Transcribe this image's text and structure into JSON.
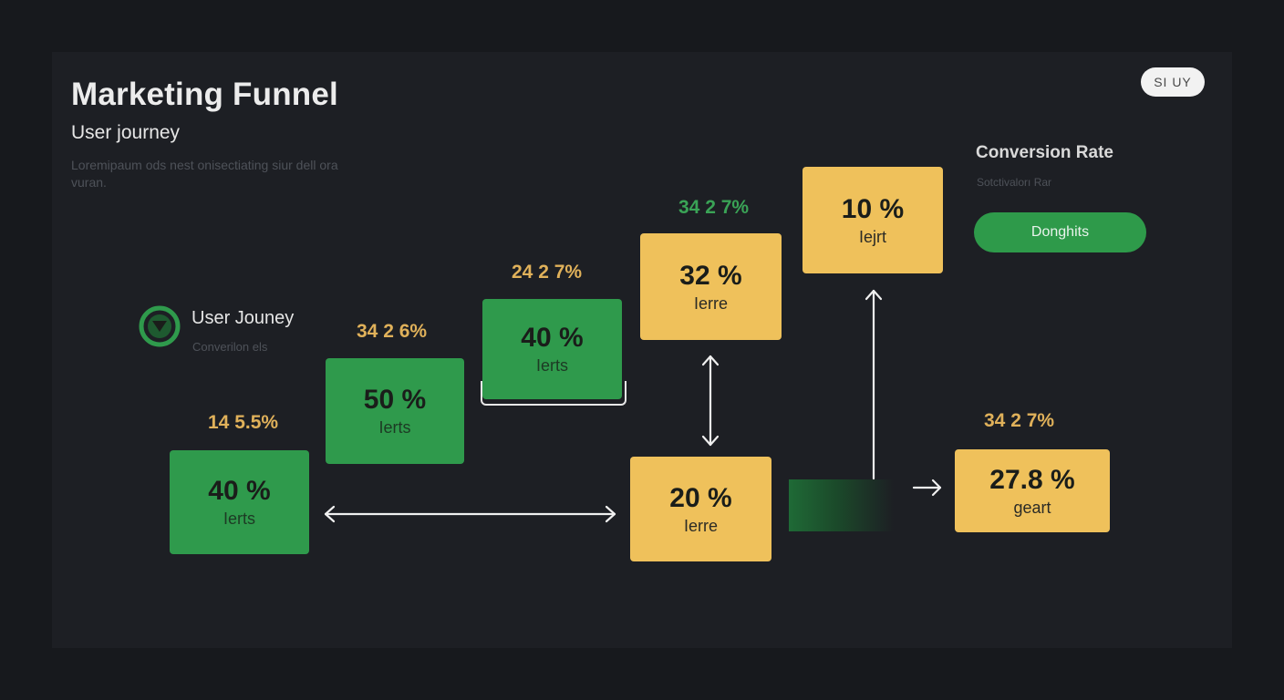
{
  "header": {
    "title": "Marketing Funnel",
    "subtitle": "User journey",
    "description": "Loremipaum ods nest onisectiating siur dell ora vuran."
  },
  "top_button": {
    "label": "SI UY"
  },
  "conversion": {
    "title": "Conversion Rate",
    "subtitle": "Sotctivalorı Rar",
    "button_label": "Donghits"
  },
  "legend": {
    "title": "User Jouney",
    "subtitle": "Converilon els",
    "icon": "triangle-down-circle-icon"
  },
  "colors": {
    "green": "#2f9a4c",
    "yellow": "#efc15b",
    "gold_text": "#e0b15a",
    "background": "#1d1f24"
  },
  "boxes": [
    {
      "value": "40 %",
      "label": "Ierts",
      "color": "green",
      "percent": "14 5.5%",
      "percent_color": "gold"
    },
    {
      "value": "50 %",
      "label": "Ierts",
      "color": "green",
      "percent": "34 2 6%",
      "percent_color": "gold"
    },
    {
      "value": "40 %",
      "label": "Ierts",
      "color": "green",
      "percent": "24 2 7%",
      "percent_color": "gold"
    },
    {
      "value": "32 %",
      "label": "Ierre",
      "color": "yellow",
      "percent": "34 2 7%",
      "percent_color": "green"
    },
    {
      "value": "10 %",
      "label": "Iejrt",
      "color": "yellow",
      "percent": "",
      "percent_color": ""
    },
    {
      "value": "20 %",
      "label": "Ierre",
      "color": "yellow",
      "percent": "",
      "percent_color": ""
    },
    {
      "value": "27.8 %",
      "label": "geart",
      "color": "yellow",
      "percent": "34 2 7%",
      "percent_color": "gold"
    }
  ]
}
